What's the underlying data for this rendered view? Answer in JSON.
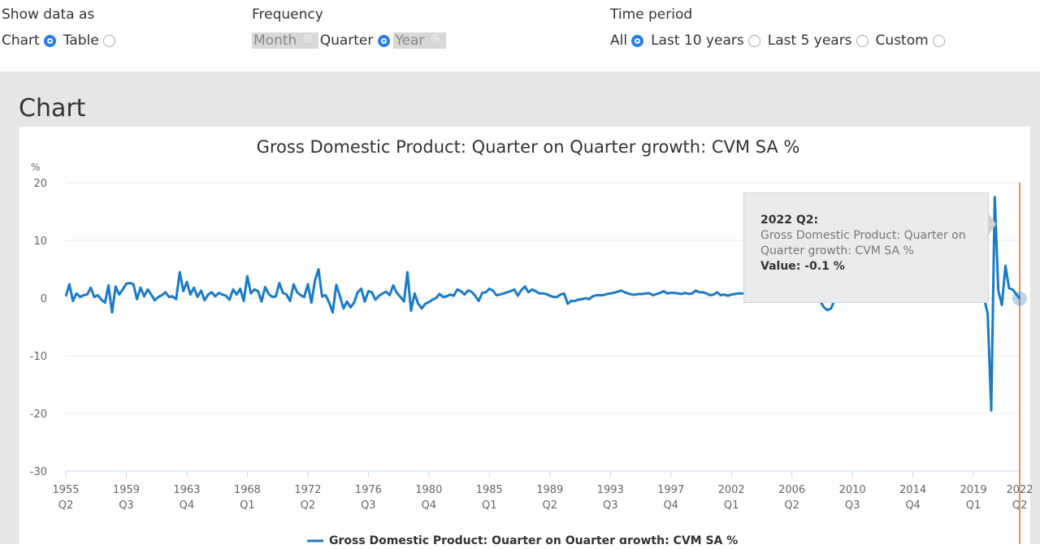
{
  "controls": {
    "show_data_as": {
      "label": "Show data as",
      "options": [
        {
          "label": "Chart",
          "selected": true
        },
        {
          "label": "Table",
          "selected": false
        }
      ]
    },
    "frequency": {
      "label": "Frequency",
      "options": [
        {
          "label": "Month",
          "selected": false,
          "disabled": true
        },
        {
          "label": "Quarter",
          "selected": true,
          "disabled": false
        },
        {
          "label": "Year",
          "selected": false,
          "disabled": true
        }
      ]
    },
    "time_period": {
      "label": "Time period",
      "options": [
        {
          "label": "All",
          "selected": true
        },
        {
          "label": "Last 10 years",
          "selected": false
        },
        {
          "label": "Last 5 years",
          "selected": false
        },
        {
          "label": "Custom",
          "selected": false
        }
      ]
    }
  },
  "panel": {
    "heading": "Chart"
  },
  "tooltip": {
    "period": "2022 Q2:",
    "series": "Gross Domestic Product: Quarter on Quarter growth: CVM SA %",
    "value": "Value: -0.1 %"
  },
  "colors": {
    "series": "#1a7bc9",
    "highlight": "#f28c52"
  },
  "chart_data": {
    "type": "line",
    "title": "Gross Domestic Product: Quarter on Quarter growth: CVM SA %",
    "ylabel": "%",
    "ylim": [
      -30,
      20
    ],
    "yticks": [
      20,
      10,
      0,
      -10,
      -20,
      -30
    ],
    "xticks": [
      "1955 Q2",
      "1959 Q3",
      "1963 Q4",
      "1968 Q1",
      "1972 Q2",
      "1976 Q3",
      "1980 Q4",
      "1985 Q1",
      "1989 Q2",
      "1993 Q3",
      "1997 Q4",
      "2002 Q1",
      "2006 Q2",
      "2010 Q3",
      "2014 Q4",
      "2019 Q1",
      "2022 Q2"
    ],
    "x_start": "1955 Q2",
    "x_end": "2022 Q2",
    "grid": true,
    "legend": "bottom",
    "series": [
      {
        "name": "Gross Domestic Product: Quarter on Quarter growth: CVM SA %",
        "values": [
          0.3,
          2.4,
          -0.5,
          0.8,
          0.2,
          0.5,
          0.6,
          1.8,
          0.2,
          0.5,
          -0.3,
          -0.8,
          2.2,
          -2.5,
          2.0,
          0.6,
          1.5,
          2.5,
          2.6,
          2.4,
          -0.2,
          1.8,
          0.3,
          1.5,
          0.6,
          -0.4,
          0.2,
          0.5,
          1.0,
          0.2,
          0.3,
          -0.2,
          4.5,
          1.2,
          2.8,
          0.6,
          1.8,
          0.2,
          1.3,
          -0.4,
          0.6,
          1.0,
          0.3,
          0.9,
          0.6,
          0.4,
          -0.3,
          1.5,
          0.6,
          1.6,
          -0.5,
          3.8,
          0.8,
          1.5,
          1.2,
          -0.6,
          1.9,
          0.7,
          0.2,
          0.3,
          2.6,
          0.9,
          0.6,
          -0.5,
          2.4,
          1.0,
          0.5,
          0.2,
          2.4,
          -0.8,
          3.0,
          5.0,
          0.3,
          0.5,
          -0.8,
          -2.5,
          2.3,
          0.4,
          -1.8,
          -0.6,
          -1.6,
          -0.8,
          1.0,
          1.6,
          -0.6,
          1.2,
          1.0,
          -0.3,
          0.4,
          0.8,
          1.1,
          0.5,
          2.2,
          0.9,
          0.2,
          -0.6,
          4.5,
          -2.2,
          0.8,
          -1.0,
          -1.8,
          -1.0,
          -0.7,
          -0.3,
          0.0,
          0.7,
          0.2,
          0.3,
          0.6,
          0.4,
          1.5,
          1.2,
          0.6,
          1.3,
          1.1,
          0.4,
          -0.5,
          0.9,
          1.0,
          1.6,
          1.3,
          0.5,
          0.6,
          0.8,
          1.0,
          1.2,
          1.5,
          0.4,
          1.4,
          2.0,
          1.0,
          1.5,
          1.2,
          0.8,
          0.8,
          0.7,
          0.4,
          0.2,
          0.2,
          0.6,
          0.8,
          -1.0,
          -0.5,
          -0.5,
          -0.3,
          -0.2,
          0.0,
          -0.2,
          0.3,
          0.5,
          0.5,
          0.5,
          0.7,
          0.8,
          0.9,
          1.1,
          1.3,
          1.0,
          0.8,
          0.6,
          0.6,
          0.7,
          0.7,
          0.8,
          0.8,
          0.5,
          0.7,
          0.9,
          1.2,
          0.8,
          0.9,
          0.9,
          0.8,
          0.7,
          0.9,
          0.7,
          0.8,
          1.3,
          1.0,
          1.0,
          0.8,
          0.5,
          0.6,
          1.0,
          0.5,
          0.6,
          0.4,
          0.6,
          0.7,
          0.8,
          0.8,
          0.7,
          0.9,
          1.0,
          1.0,
          0.5,
          0.6,
          0.3,
          0.5,
          0.8,
          0.9,
          0.8,
          1.0,
          0.5,
          0.3,
          0.5,
          0.7,
          0.9,
          0.8,
          0.6,
          0.7,
          0.2,
          -0.6,
          -1.6,
          -2.1,
          -1.8,
          -0.3,
          0.1,
          0.4,
          0.5,
          1.0,
          0.6,
          0.1,
          0.5,
          0.1,
          0.5,
          0.1,
          0.5,
          -0.2,
          0.9,
          0.0,
          0.5,
          0.6,
          0.8,
          0.5,
          0.9,
          0.8,
          0.7,
          0.8,
          0.4,
          0.5,
          0.3,
          0.7,
          0.2,
          0.6,
          0.5,
          0.6,
          0.8,
          0.3,
          0.5,
          0.4,
          0.1,
          0.5,
          0.6,
          0.2,
          0.5,
          -0.1,
          0.5,
          0.0,
          -2.7,
          -19.5,
          17.5,
          1.3,
          -1.2,
          5.6,
          1.7,
          1.5,
          0.7,
          -0.1
        ]
      }
    ]
  }
}
